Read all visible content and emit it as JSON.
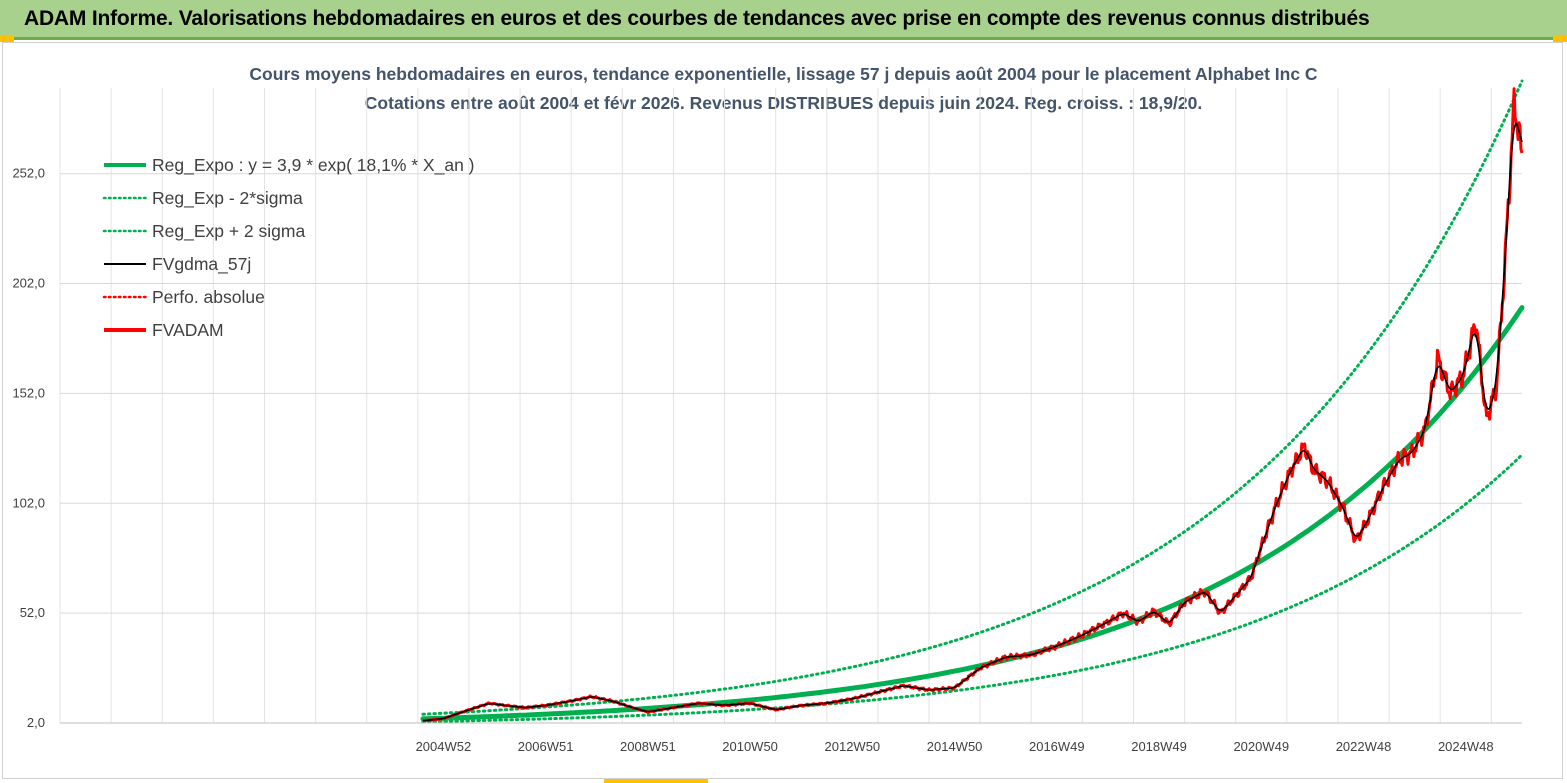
{
  "header": {
    "title": "ADAM Informe. Valorisations hebdomadaires en euros et des courbes de tendances avec prise en compte des revenus connus distribués"
  },
  "colors": {
    "banner_bg": "#a9d18e",
    "banner_border": "#70ad47",
    "corner_accent": "#ffc000",
    "reg_expo": "#00b050",
    "sigma_bands": "#00b050",
    "fvgdma": "#000000",
    "perfo": "#ff0000",
    "fvadam": "#ff0000",
    "title_text": "#44546a"
  },
  "chart_data": {
    "type": "line",
    "title": "Cours moyens hebdomadaires en euros, tendance exponentielle, lissage 57 j depuis août 2004 pour le placement Alphabet Inc C",
    "subtitle": "Cotations entre août 2004 et févr 2026. Revenus DISTRIBUES depuis juin 2024. Reg. croiss. : 18,9/20.",
    "xlabel": "",
    "ylabel": "",
    "x_start_year": 2004.6,
    "x_end_year": 2026.1,
    "x_axis_min_year": 1997.5,
    "x_tick_labels": [
      "2004W52",
      "2006W51",
      "2008W51",
      "2010W50",
      "2012W50",
      "2014W50",
      "2016W49",
      "2018W49",
      "2020W49",
      "2022W48",
      "2024W48"
    ],
    "x_tick_years": [
      2005.0,
      2007.0,
      2009.0,
      2011.0,
      2013.0,
      2015.0,
      2017.0,
      2019.0,
      2021.0,
      2023.0,
      2025.0
    ],
    "y_ticks": [
      2.0,
      52.0,
      102.0,
      152.0,
      202.0,
      252.0
    ],
    "y_tick_labels": [
      "2,0",
      "52,0",
      "102,0",
      "152,0",
      "202,0",
      "252,0"
    ],
    "ylim": [
      2.0,
      291.0
    ],
    "grid": true,
    "legend_position": "top-left",
    "regression": {
      "a": 3.9,
      "rate_pct": 18.1,
      "sigma_factor": 1.54
    },
    "series": [
      {
        "name": "Reg_Expo : y = 3,9 * exp( 18,1% *  X_an )",
        "kind": "reg",
        "color": "#00b050",
        "style": "solid-thick"
      },
      {
        "name": "Reg_Exp - 2*sigma",
        "kind": "reg_low",
        "color": "#00b050",
        "style": "dotted"
      },
      {
        "name": "Reg_Exp + 2 sigma",
        "kind": "reg_high",
        "color": "#00b050",
        "style": "dotted"
      },
      {
        "name": "FVgdma_57j",
        "kind": "smooth",
        "color": "#000000",
        "style": "solid-thin"
      },
      {
        "name": "Perfo. absolue",
        "kind": "perfo",
        "color": "#ff0000",
        "style": "dotted"
      },
      {
        "name": "FVADAM",
        "kind": "price",
        "color": "#ff0000",
        "style": "solid-thick",
        "points": [
          [
            2004.6,
            3
          ],
          [
            2005.0,
            4
          ],
          [
            2005.5,
            8
          ],
          [
            2005.9,
            11
          ],
          [
            2006.2,
            10
          ],
          [
            2006.6,
            9
          ],
          [
            2007.0,
            10
          ],
          [
            2007.5,
            12
          ],
          [
            2007.9,
            14
          ],
          [
            2008.3,
            12
          ],
          [
            2008.7,
            9
          ],
          [
            2009.0,
            7
          ],
          [
            2009.5,
            9
          ],
          [
            2010.0,
            11
          ],
          [
            2010.5,
            10
          ],
          [
            2011.0,
            11
          ],
          [
            2011.5,
            8
          ],
          [
            2012.0,
            10
          ],
          [
            2012.5,
            11
          ],
          [
            2013.0,
            13
          ],
          [
            2013.5,
            16
          ],
          [
            2014.0,
            19
          ],
          [
            2014.5,
            17
          ],
          [
            2015.0,
            18
          ],
          [
            2015.5,
            27
          ],
          [
            2016.0,
            32
          ],
          [
            2016.5,
            33
          ],
          [
            2017.0,
            37
          ],
          [
            2017.5,
            42
          ],
          [
            2018.0,
            48
          ],
          [
            2018.3,
            52
          ],
          [
            2018.6,
            48
          ],
          [
            2018.9,
            53
          ],
          [
            2019.2,
            47
          ],
          [
            2019.5,
            57
          ],
          [
            2019.9,
            62
          ],
          [
            2020.2,
            52
          ],
          [
            2020.5,
            60
          ],
          [
            2020.8,
            68
          ],
          [
            2021.0,
            82
          ],
          [
            2021.3,
            102
          ],
          [
            2021.6,
            118
          ],
          [
            2021.85,
            128
          ],
          [
            2022.0,
            118
          ],
          [
            2022.3,
            112
          ],
          [
            2022.6,
            100
          ],
          [
            2022.85,
            85
          ],
          [
            2023.1,
            95
          ],
          [
            2023.4,
            110
          ],
          [
            2023.7,
            122
          ],
          [
            2023.95,
            125
          ],
          [
            2024.2,
            135
          ],
          [
            2024.45,
            168
          ],
          [
            2024.7,
            152
          ],
          [
            2024.95,
            160
          ],
          [
            2025.2,
            185
          ],
          [
            2025.4,
            140
          ],
          [
            2025.6,
            155
          ],
          [
            2025.75,
            205
          ],
          [
            2025.95,
            285
          ],
          [
            2026.1,
            260
          ]
        ]
      }
    ]
  }
}
